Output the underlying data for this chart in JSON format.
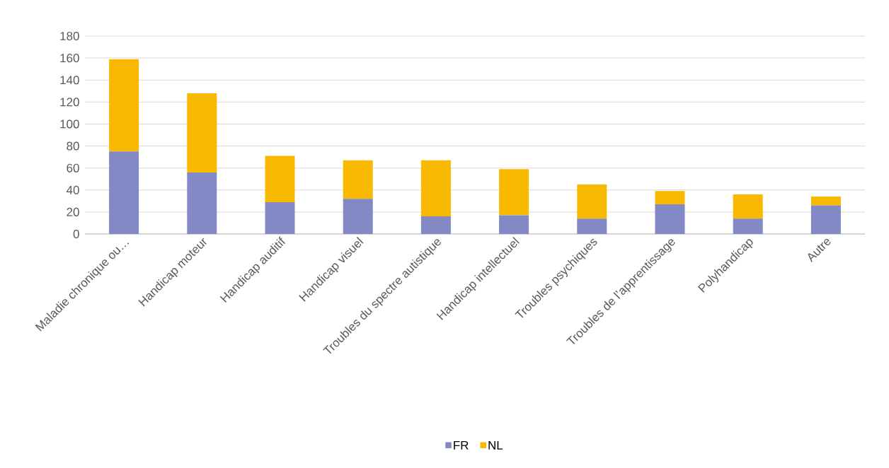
{
  "chart_data": {
    "type": "bar",
    "stacked": true,
    "categories": [
      "Maladie chronique ou…",
      "Handicap moteur",
      "Handicap auditif",
      "Handicap visuel",
      "Troubles du spectre autistique",
      "Handicap intellectuel",
      "Troubles psychiques",
      "Troubles de l’apprentissage",
      "Polyhandicap",
      "Autre"
    ],
    "series": [
      {
        "name": "FR",
        "color": "#8289c4",
        "values": [
          75,
          56,
          29,
          32,
          16,
          17,
          14,
          27,
          14,
          26
        ]
      },
      {
        "name": "NL",
        "color": "#f9b900",
        "values": [
          84,
          72,
          42,
          35,
          51,
          42,
          31,
          12,
          22,
          8
        ]
      }
    ],
    "ylim": [
      0,
      180
    ],
    "yticks": [
      0,
      20,
      40,
      60,
      80,
      100,
      120,
      140,
      160,
      180
    ],
    "grid": "y",
    "legend": "bottom"
  }
}
